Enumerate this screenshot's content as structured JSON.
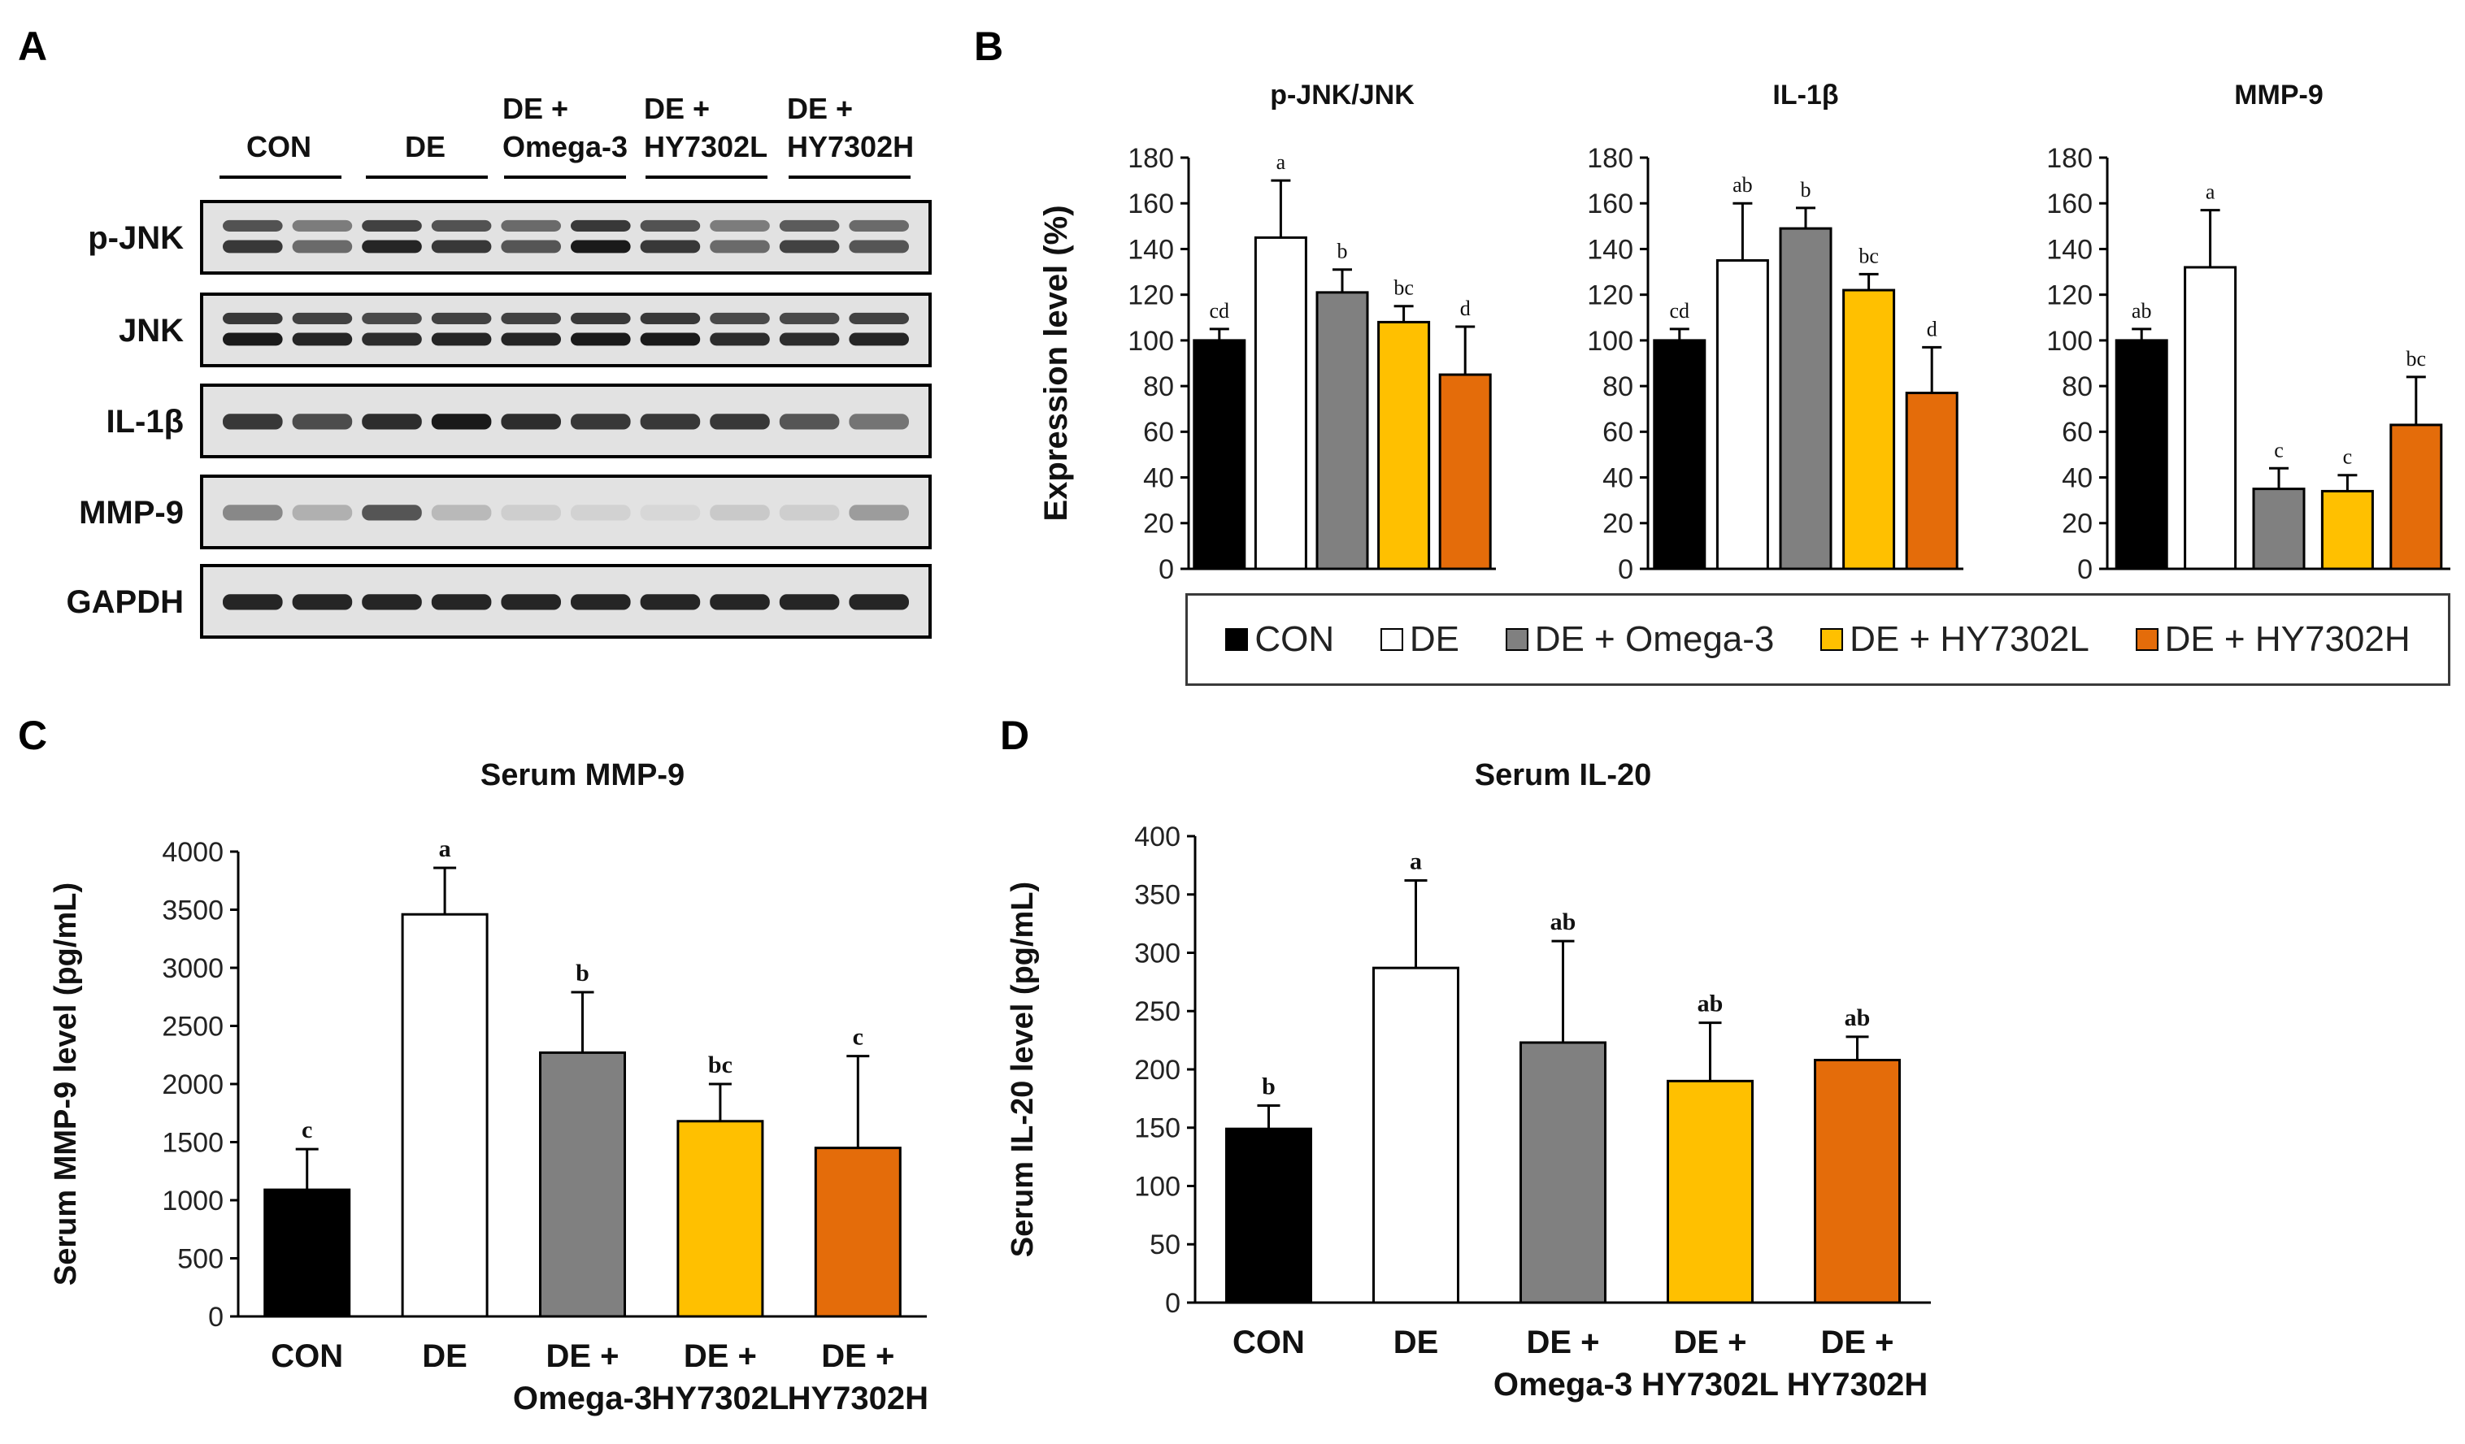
{
  "panels": {
    "A": {
      "letter": "A"
    },
    "B": {
      "letter": "B"
    },
    "C": {
      "letter": "C"
    },
    "D": {
      "letter": "D"
    }
  },
  "colors": {
    "CON": "#000000",
    "DE": "#ffffff",
    "DE + Omega-3": "#808080",
    "DE + HY7302L": "#ffc000",
    "DE + HY7302H": "#e46c0a",
    "axis": "#000000",
    "band": "#1a1a1a",
    "blot_bg": "#e2e2e2"
  },
  "western_blot": {
    "group_labels": [
      {
        "line1": "CON",
        "line2": ""
      },
      {
        "line1": "DE",
        "line2": ""
      },
      {
        "line1": "DE +",
        "line2": "Omega-3"
      },
      {
        "line1": "DE +",
        "line2": "HY7302L"
      },
      {
        "line1": "DE +",
        "line2": "HY7302H"
      }
    ],
    "rows": [
      {
        "label": "p-JNK",
        "doublet": true,
        "intensity": [
          0.85,
          0.6,
          0.95,
          0.85,
          0.7,
          1.0,
          0.85,
          0.6,
          0.8,
          0.7
        ]
      },
      {
        "label": "JNK",
        "doublet": true,
        "intensity": [
          1.0,
          0.95,
          0.9,
          0.95,
          0.95,
          1.0,
          1.0,
          0.9,
          0.9,
          0.95
        ]
      },
      {
        "label": "IL-1β",
        "doublet": false,
        "intensity": [
          0.85,
          0.75,
          0.9,
          1.0,
          0.9,
          0.85,
          0.85,
          0.85,
          0.7,
          0.55
        ]
      },
      {
        "label": "MMP-9",
        "doublet": false,
        "intensity": [
          0.45,
          0.25,
          0.7,
          0.2,
          0.1,
          0.08,
          0.05,
          0.12,
          0.1,
          0.35
        ]
      },
      {
        "label": "GAPDH",
        "doublet": false,
        "intensity": [
          0.95,
          0.95,
          0.95,
          0.95,
          0.95,
          0.95,
          0.95,
          0.95,
          0.95,
          0.95
        ]
      }
    ]
  },
  "legend": {
    "items": [
      "CON",
      "DE",
      "DE + Omega-3",
      "DE + HY7302L",
      "DE + HY7302H"
    ]
  },
  "chart_data": [
    {
      "id": "B1",
      "type": "bar",
      "title": "p-JNK/JNK",
      "ylabel": "Expression level (%)",
      "categories": [
        "CON",
        "DE",
        "DE + Omega-3",
        "DE + HY7302L",
        "DE + HY7302H"
      ],
      "values": [
        100,
        145,
        121,
        108,
        85
      ],
      "errors": [
        5,
        25,
        10,
        7,
        21
      ],
      "significance": [
        "cd",
        "a",
        "b",
        "bc",
        "d"
      ],
      "ylim": [
        0,
        180
      ],
      "yticks": [
        0,
        20,
        40,
        60,
        80,
        100,
        120,
        140,
        160,
        180
      ]
    },
    {
      "id": "B2",
      "type": "bar",
      "title": "IL-1β",
      "categories": [
        "CON",
        "DE",
        "DE + Omega-3",
        "DE + HY7302L",
        "DE + HY7302H"
      ],
      "values": [
        100,
        135,
        149,
        122,
        77
      ],
      "errors": [
        5,
        25,
        9,
        7,
        20
      ],
      "significance": [
        "cd",
        "ab",
        "b",
        "bc",
        "d"
      ],
      "ylim": [
        0,
        180
      ],
      "yticks": [
        0,
        20,
        40,
        60,
        80,
        100,
        120,
        140,
        160,
        180
      ]
    },
    {
      "id": "B3",
      "type": "bar",
      "title": "MMP-9",
      "categories": [
        "CON",
        "DE",
        "DE + Omega-3",
        "DE + HY7302L",
        "DE + HY7302H"
      ],
      "values": [
        100,
        132,
        35,
        34,
        63
      ],
      "errors": [
        5,
        25,
        9,
        7,
        21
      ],
      "significance": [
        "ab",
        "a",
        "c",
        "c",
        "bc"
      ],
      "ylim": [
        0,
        180
      ],
      "yticks": [
        0,
        20,
        40,
        60,
        80,
        100,
        120,
        140,
        160,
        180
      ]
    },
    {
      "id": "C",
      "type": "bar",
      "title": "Serum MMP-9",
      "ylabel": "Serum MMP-9 level (pg/mL)",
      "categories": [
        "CON",
        "DE",
        "DE + Omega-3",
        "DE + HY7302L",
        "DE + HY7302H"
      ],
      "values": [
        1090,
        3460,
        2270,
        1680,
        1450
      ],
      "errors": [
        350,
        400,
        520,
        320,
        790
      ],
      "significance": [
        "c",
        "a",
        "b",
        "bc",
        "c"
      ],
      "ylim": [
        0,
        4000
      ],
      "yticks": [
        0,
        500,
        1000,
        1500,
        2000,
        2500,
        3000,
        3500,
        4000
      ]
    },
    {
      "id": "D",
      "type": "bar",
      "title": "Serum IL-20",
      "ylabel": "Serum IL-20 level (pg/mL)",
      "categories": [
        "CON",
        "DE",
        "DE + Omega-3",
        "DE + HY7302L",
        "DE + HY7302H"
      ],
      "values": [
        149,
        287,
        223,
        190,
        208
      ],
      "errors": [
        20,
        75,
        87,
        50,
        20
      ],
      "significance": [
        "b",
        "a",
        "ab",
        "ab",
        "ab"
      ],
      "ylim": [
        0,
        400
      ],
      "yticks": [
        0,
        50,
        100,
        150,
        200,
        250,
        300,
        350,
        400
      ]
    }
  ],
  "x_labels": [
    {
      "line1": "CON",
      "line2": ""
    },
    {
      "line1": "DE",
      "line2": ""
    },
    {
      "line1": "DE +",
      "line2": "Omega-3"
    },
    {
      "line1": "DE +",
      "line2": "HY7302L"
    },
    {
      "line1": "DE +",
      "line2": "HY7302H"
    }
  ]
}
